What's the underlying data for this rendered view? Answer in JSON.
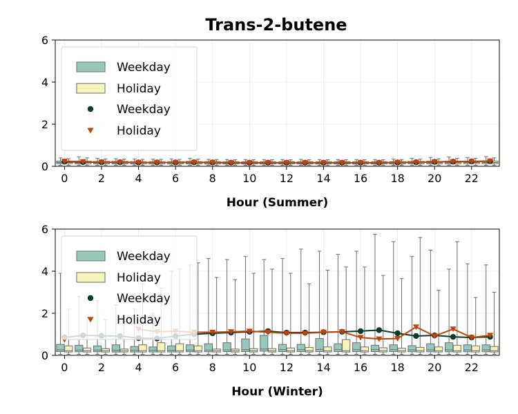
{
  "title": "Trans-2-butene",
  "colors": {
    "weekday_box": "#96c8bc",
    "holiday_box": "#f7f5b9",
    "weekday_mean": "#0b3b24",
    "holiday_mean": "#c0440a",
    "box_edge": "#6b6b6b"
  },
  "legend": {
    "placement": "upper-left",
    "items": [
      "Weekday",
      "Holiday",
      "Weekday",
      "Holiday"
    ]
  },
  "chart_data": [
    {
      "type": "box",
      "panel": "summer",
      "xlabel": "Hour (Summer)",
      "ylabel": "",
      "ylim": [
        0,
        6
      ],
      "yticks": [
        0,
        2,
        4,
        6
      ],
      "xticks": [
        0,
        2,
        4,
        6,
        8,
        10,
        12,
        14,
        16,
        18,
        20,
        22
      ],
      "hours": [
        0,
        1,
        2,
        3,
        4,
        5,
        6,
        7,
        8,
        9,
        10,
        11,
        12,
        13,
        14,
        15,
        16,
        17,
        18,
        19,
        20,
        21,
        22,
        23
      ],
      "grid": true,
      "weekday_box": {
        "q1": [
          0.13,
          0.12,
          0.12,
          0.12,
          0.11,
          0.11,
          0.11,
          0.12,
          0.11,
          0.11,
          0.11,
          0.11,
          0.11,
          0.11,
          0.11,
          0.11,
          0.11,
          0.11,
          0.11,
          0.12,
          0.12,
          0.12,
          0.13,
          0.13
        ],
        "median": [
          0.18,
          0.17,
          0.17,
          0.17,
          0.16,
          0.16,
          0.16,
          0.17,
          0.16,
          0.16,
          0.16,
          0.16,
          0.16,
          0.16,
          0.16,
          0.16,
          0.16,
          0.16,
          0.16,
          0.17,
          0.17,
          0.18,
          0.18,
          0.18
        ],
        "q3": [
          0.25,
          0.24,
          0.23,
          0.23,
          0.22,
          0.22,
          0.22,
          0.23,
          0.22,
          0.21,
          0.21,
          0.21,
          0.21,
          0.21,
          0.21,
          0.21,
          0.21,
          0.21,
          0.22,
          0.23,
          0.24,
          0.24,
          0.25,
          0.25
        ],
        "low": [
          0.05,
          0.05,
          0.05,
          0.05,
          0.05,
          0.05,
          0.05,
          0.05,
          0.05,
          0.05,
          0.05,
          0.05,
          0.05,
          0.05,
          0.05,
          0.05,
          0.05,
          0.05,
          0.05,
          0.05,
          0.05,
          0.05,
          0.05,
          0.05
        ],
        "high": [
          0.4,
          0.45,
          0.38,
          0.36,
          0.35,
          0.34,
          0.35,
          0.38,
          0.33,
          0.32,
          0.32,
          0.32,
          0.32,
          0.33,
          0.32,
          0.32,
          0.32,
          0.32,
          0.34,
          0.38,
          0.42,
          0.44,
          0.42,
          0.46
        ]
      },
      "holiday_box": {
        "q1": [
          0.13,
          0.12,
          0.12,
          0.12,
          0.12,
          0.12,
          0.12,
          0.12,
          0.12,
          0.12,
          0.12,
          0.12,
          0.12,
          0.12,
          0.12,
          0.12,
          0.12,
          0.12,
          0.12,
          0.12,
          0.12,
          0.12,
          0.13,
          0.13
        ],
        "median": [
          0.18,
          0.18,
          0.17,
          0.17,
          0.17,
          0.17,
          0.17,
          0.17,
          0.17,
          0.17,
          0.17,
          0.17,
          0.17,
          0.17,
          0.17,
          0.17,
          0.17,
          0.17,
          0.17,
          0.17,
          0.17,
          0.18,
          0.18,
          0.18
        ],
        "q3": [
          0.24,
          0.24,
          0.23,
          0.23,
          0.22,
          0.22,
          0.22,
          0.22,
          0.22,
          0.22,
          0.22,
          0.22,
          0.22,
          0.22,
          0.22,
          0.22,
          0.22,
          0.22,
          0.22,
          0.23,
          0.23,
          0.24,
          0.24,
          0.25
        ],
        "low": [
          0.05,
          0.05,
          0.05,
          0.05,
          0.05,
          0.05,
          0.05,
          0.05,
          0.05,
          0.05,
          0.05,
          0.05,
          0.05,
          0.05,
          0.05,
          0.05,
          0.05,
          0.05,
          0.05,
          0.05,
          0.05,
          0.05,
          0.05,
          0.05
        ],
        "high": [
          0.36,
          0.4,
          0.35,
          0.34,
          0.33,
          0.33,
          0.33,
          0.34,
          0.32,
          0.31,
          0.31,
          0.31,
          0.31,
          0.31,
          0.31,
          0.31,
          0.31,
          0.31,
          0.32,
          0.34,
          0.36,
          0.38,
          0.38,
          0.4
        ]
      },
      "weekday_mean": [
        0.22,
        0.2,
        0.19,
        0.19,
        0.18,
        0.18,
        0.18,
        0.19,
        0.18,
        0.17,
        0.17,
        0.17,
        0.17,
        0.17,
        0.17,
        0.17,
        0.17,
        0.17,
        0.18,
        0.19,
        0.21,
        0.22,
        0.23,
        0.24
      ],
      "holiday_mean": [
        0.24,
        0.22,
        0.2,
        0.19,
        0.18,
        0.18,
        0.18,
        0.19,
        0.18,
        0.17,
        0.17,
        0.17,
        0.17,
        0.17,
        0.17,
        0.17,
        0.17,
        0.17,
        0.18,
        0.19,
        0.21,
        0.22,
        0.23,
        0.25
      ]
    },
    {
      "type": "box",
      "panel": "winter",
      "xlabel": "Hour (Winter)",
      "ylabel": "",
      "ylim": [
        0,
        6
      ],
      "yticks": [
        0,
        2,
        4,
        6
      ],
      "xticks": [
        0,
        2,
        4,
        6,
        8,
        10,
        12,
        14,
        16,
        18,
        20,
        22
      ],
      "hours": [
        0,
        1,
        2,
        3,
        4,
        5,
        6,
        7,
        8,
        9,
        10,
        11,
        12,
        13,
        14,
        15,
        16,
        17,
        18,
        19,
        20,
        21,
        22,
        23
      ],
      "grid": true,
      "weekday_box": {
        "q1": [
          0.18,
          0.17,
          0.17,
          0.16,
          0.16,
          0.16,
          0.16,
          0.17,
          0.17,
          0.18,
          0.18,
          0.2,
          0.18,
          0.18,
          0.18,
          0.18,
          0.18,
          0.18,
          0.18,
          0.17,
          0.17,
          0.17,
          0.17,
          0.17
        ],
        "median": [
          0.26,
          0.25,
          0.25,
          0.24,
          0.24,
          0.24,
          0.24,
          0.25,
          0.25,
          0.26,
          0.27,
          0.3,
          0.27,
          0.27,
          0.28,
          0.27,
          0.27,
          0.27,
          0.27,
          0.26,
          0.26,
          0.26,
          0.26,
          0.26
        ],
        "q3": [
          0.52,
          0.48,
          0.45,
          0.5,
          0.42,
          0.4,
          0.45,
          0.5,
          0.55,
          0.6,
          0.78,
          0.95,
          0.52,
          0.52,
          0.8,
          0.55,
          0.6,
          0.48,
          0.5,
          0.46,
          0.55,
          0.6,
          0.5,
          0.5
        ],
        "low": [
          0.05,
          0.05,
          0.05,
          0.05,
          0.05,
          0.05,
          0.05,
          0.05,
          0.05,
          0.05,
          0.05,
          0.05,
          0.05,
          0.05,
          0.05,
          0.05,
          0.05,
          0.05,
          0.05,
          0.05,
          0.05,
          0.05,
          0.05,
          0.05
        ],
        "high": [
          3.9,
          2.8,
          2.6,
          2.4,
          2.2,
          2.0,
          4.0,
          4.3,
          4.6,
          4.55,
          4.7,
          4.55,
          4.6,
          5.05,
          4.95,
          4.8,
          4.95,
          5.75,
          5.4,
          4.7,
          5.0,
          4.1,
          4.35,
          4.3
        ]
      },
      "holiday_box": {
        "q1": [
          0.16,
          0.16,
          0.16,
          0.16,
          0.16,
          0.16,
          0.16,
          0.16,
          0.16,
          0.16,
          0.16,
          0.16,
          0.16,
          0.16,
          0.16,
          0.16,
          0.16,
          0.16,
          0.16,
          0.16,
          0.16,
          0.16,
          0.16,
          0.16
        ],
        "median": [
          0.22,
          0.22,
          0.22,
          0.22,
          0.22,
          0.22,
          0.22,
          0.22,
          0.22,
          0.22,
          0.22,
          0.22,
          0.22,
          0.22,
          0.22,
          0.22,
          0.22,
          0.22,
          0.22,
          0.22,
          0.22,
          0.22,
          0.22,
          0.22
        ],
        "q3": [
          0.45,
          0.35,
          0.32,
          0.3,
          0.5,
          0.6,
          0.55,
          0.45,
          0.3,
          0.3,
          0.32,
          0.32,
          0.35,
          0.38,
          0.4,
          0.75,
          0.4,
          0.36,
          0.34,
          0.38,
          0.4,
          0.48,
          0.45,
          0.42
        ],
        "low": [
          0.05,
          0.05,
          0.05,
          0.05,
          0.05,
          0.05,
          0.05,
          0.05,
          0.05,
          0.05,
          0.05,
          0.05,
          0.05,
          0.05,
          0.05,
          0.05,
          0.05,
          0.05,
          0.05,
          0.05,
          0.05,
          0.05,
          0.05,
          0.05
        ],
        "high": [
          2.2,
          1.8,
          1.7,
          1.6,
          3.4,
          3.2,
          4.1,
          4.4,
          3.7,
          3.6,
          3.9,
          4.1,
          3.9,
          3.4,
          4.05,
          4.2,
          4.2,
          3.8,
          3.65,
          5.6,
          3.1,
          5.4,
          2.75,
          3.0
        ]
      },
      "weekday_mean": [
        0.85,
        0.95,
        0.93,
        0.92,
        0.82,
        0.8,
        0.92,
        1.0,
        1.05,
        1.08,
        1.12,
        1.15,
        1.08,
        1.08,
        1.1,
        1.12,
        1.15,
        1.2,
        1.05,
        0.92,
        0.95,
        0.88,
        0.85,
        0.88
      ],
      "holiday_mean": [
        0.75,
        null,
        null,
        null,
        1.25,
        1.12,
        1.15,
        1.1,
        1.1,
        1.12,
        1.15,
        1.1,
        1.05,
        1.05,
        1.1,
        1.12,
        0.85,
        0.78,
        0.8,
        1.35,
        0.92,
        1.25,
        0.85,
        0.95
      ]
    }
  ]
}
